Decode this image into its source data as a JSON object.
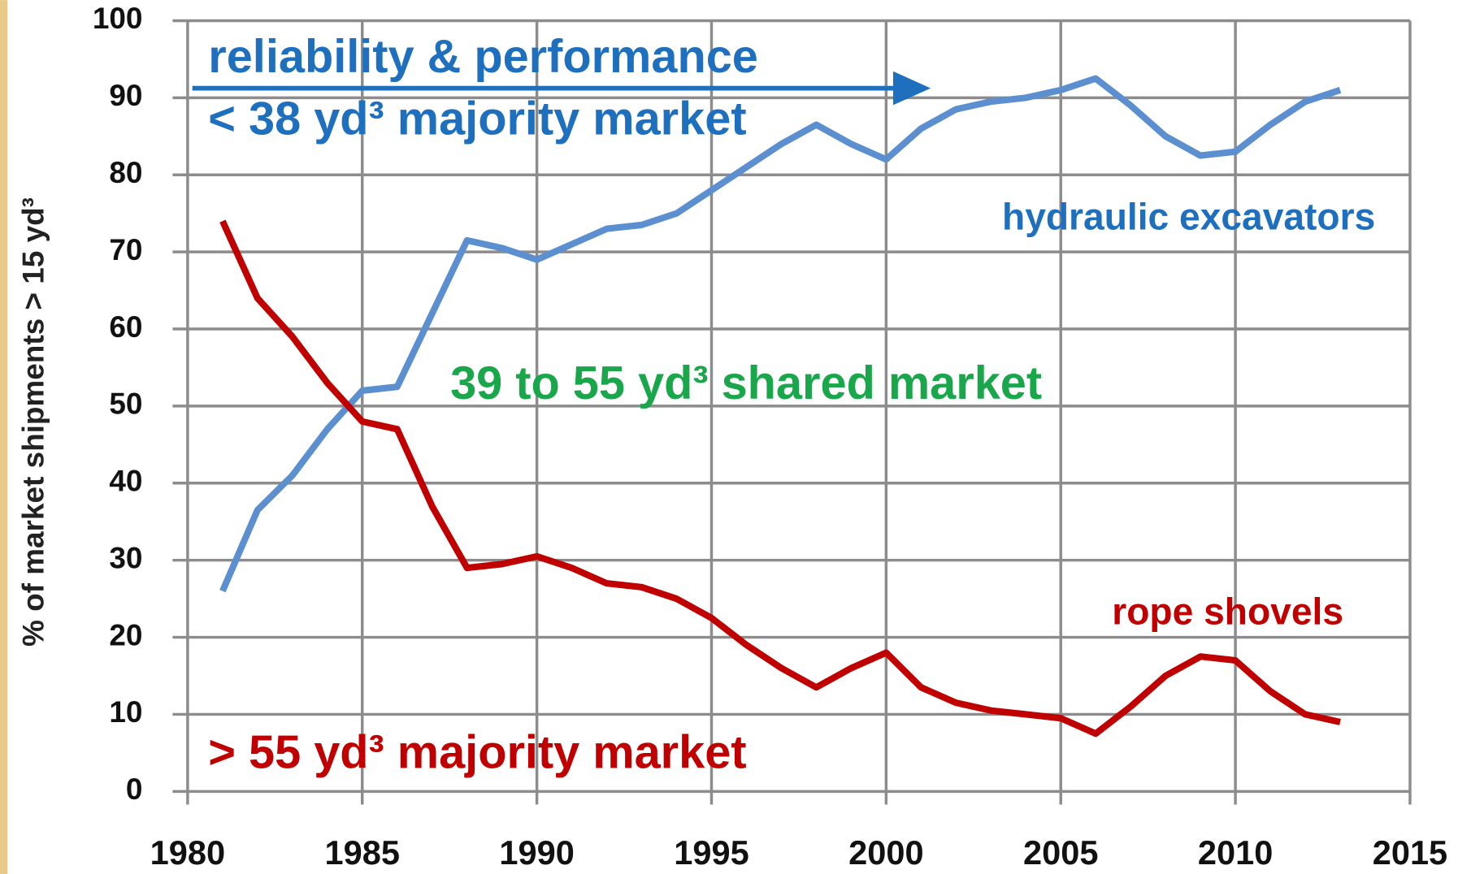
{
  "chart_data": {
    "type": "line",
    "ylabel": "% of market shipments > 15 yd³",
    "x": [
      1981,
      1982,
      1983,
      1984,
      1985,
      1986,
      1987,
      1988,
      1989,
      1990,
      1991,
      1992,
      1993,
      1994,
      1995,
      1996,
      1997,
      1998,
      1999,
      2000,
      2001,
      2002,
      2003,
      2004,
      2005,
      2006,
      2007,
      2008,
      2009,
      2010,
      2011,
      2012,
      2013
    ],
    "series": [
      {
        "name": "hydraulic excavators",
        "color": "#5b8fd0",
        "values": [
          26,
          36.5,
          41,
          47,
          52,
          52.5,
          62,
          71.5,
          70.5,
          69,
          71,
          73,
          73.5,
          75,
          78,
          81,
          84,
          86.5,
          84,
          82,
          86,
          88.5,
          89.5,
          90,
          91,
          92.5,
          89,
          85,
          82.5,
          83,
          86.5,
          89.5,
          91
        ]
      },
      {
        "name": "rope shovels",
        "color": "#c00000",
        "values": [
          74,
          64,
          59,
          53,
          48,
          47,
          37,
          29,
          29.5,
          30.5,
          29,
          27,
          26.5,
          25,
          22.5,
          19,
          16,
          13.5,
          16,
          18,
          13.5,
          11.5,
          10.5,
          10,
          9.5,
          7.5,
          11,
          15,
          17.5,
          17,
          13,
          10,
          9
        ]
      }
    ],
    "annotations": [
      "reliability & performance",
      "< 38 yd³ majority market",
      "39 to 55 yd³ shared market",
      "> 55 yd³ majority market"
    ],
    "xlim": [
      1980,
      2015
    ],
    "xticks": [
      1980,
      1985,
      1990,
      1995,
      2000,
      2005,
      2010,
      2015
    ],
    "ylim": [
      0,
      100
    ],
    "yticks": [
      0,
      10,
      20,
      30,
      40,
      50,
      60,
      70,
      80,
      90,
      100
    ],
    "grid": true
  }
}
